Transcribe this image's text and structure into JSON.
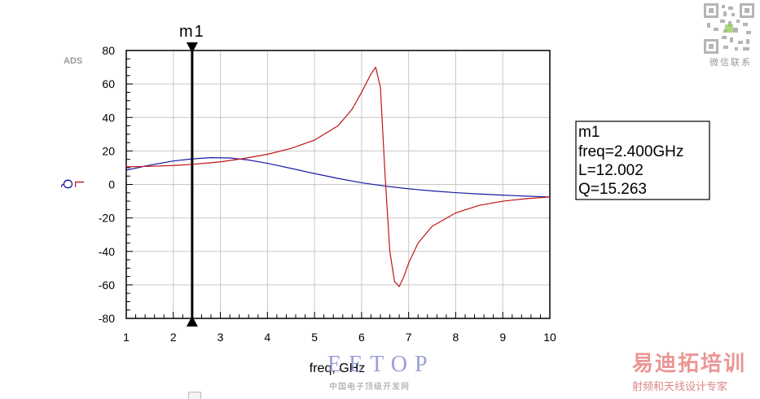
{
  "chart_data": {
    "type": "line",
    "app_label": "ADS",
    "xlabel": "freq, GHz",
    "xlim": [
      1,
      10
    ],
    "ylim": [
      -80,
      80
    ],
    "x_ticks": [
      1,
      2,
      3,
      4,
      5,
      6,
      7,
      8,
      9,
      10
    ],
    "y_ticks": [
      80,
      60,
      40,
      20,
      0,
      -20,
      -40,
      -60,
      -80
    ],
    "grid": true,
    "legend_labels": [
      "Q",
      "L"
    ],
    "series": [
      {
        "name": "Q",
        "color": "#1a1aa6",
        "x": [
          1.0,
          1.5,
          2.0,
          2.4,
          2.8,
          3.2,
          3.6,
          4.0,
          4.5,
          5.0,
          5.5,
          6.0,
          6.5,
          7.0,
          7.5,
          8.0,
          8.5,
          9.0,
          9.5,
          10.0
        ],
        "y": [
          8.5,
          11.5,
          14.0,
          15.263,
          16.0,
          15.8,
          14.6,
          12.6,
          9.6,
          6.5,
          3.6,
          1.0,
          -1.0,
          -2.6,
          -3.9,
          -4.9,
          -5.7,
          -6.4,
          -7.0,
          -7.5
        ]
      },
      {
        "name": "L",
        "color": "#c01414",
        "x": [
          1.0,
          1.5,
          2.0,
          2.4,
          3.0,
          3.5,
          4.0,
          4.5,
          5.0,
          5.5,
          5.8,
          6.0,
          6.2,
          6.3,
          6.4,
          6.5,
          6.6,
          6.7,
          6.8,
          6.9,
          7.0,
          7.2,
          7.5,
          8.0,
          8.5,
          9.0,
          9.5,
          10.0
        ],
        "y": [
          10.5,
          10.8,
          11.3,
          12.002,
          13.5,
          15.5,
          18.0,
          21.5,
          26.5,
          35.0,
          45.0,
          55.0,
          66.0,
          70.0,
          58.0,
          5.0,
          -40.0,
          -58.0,
          -61.0,
          -55.0,
          -47.0,
          -35.0,
          -25.0,
          -17.0,
          -12.5,
          -10.0,
          -8.5,
          -7.5
        ]
      }
    ],
    "marker": {
      "name": "m1",
      "x": 2.4,
      "readout": [
        "m1",
        "freq=2.400GHz",
        "L=12.002",
        "Q=15.263"
      ]
    }
  },
  "watermarks": {
    "qr_caption": "微信联系",
    "eetop": "EETOP",
    "eetop_sub": "中国电子顶级开发网",
    "brand": "易迪拓培训",
    "brand_sub": "射频和天线设计专家"
  }
}
